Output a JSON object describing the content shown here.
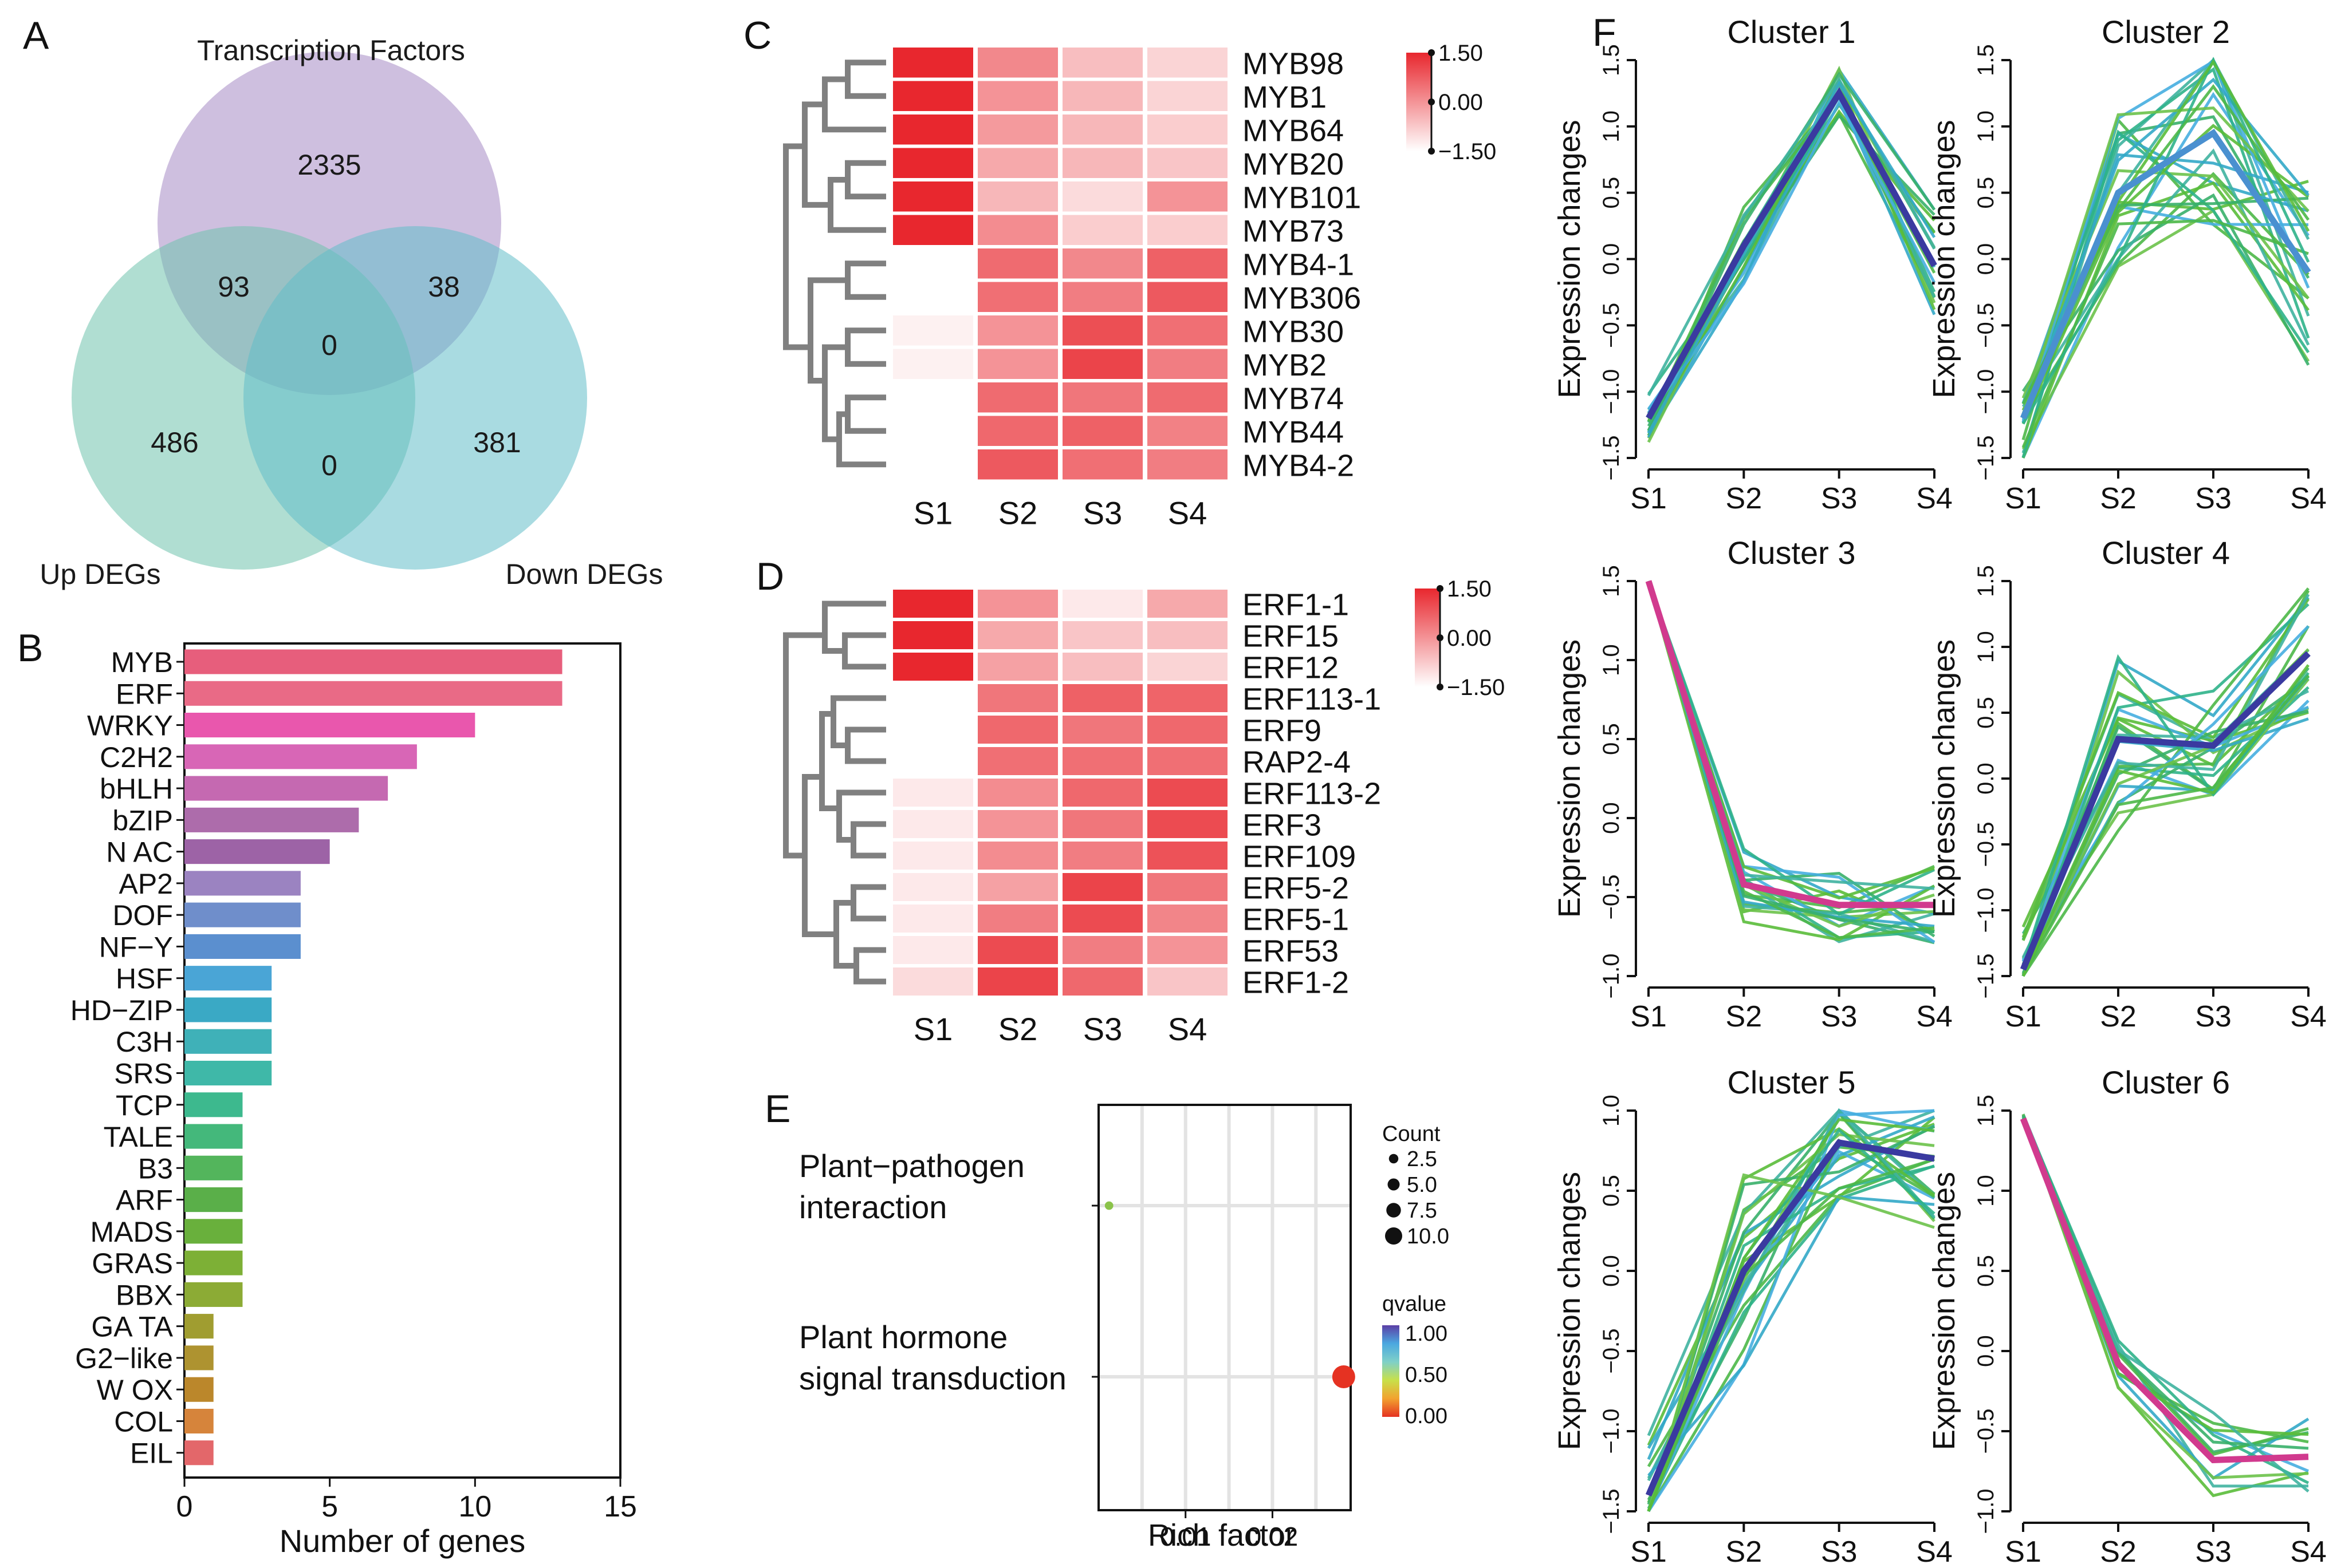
{
  "panel_labels": {
    "A": "A",
    "B": "B",
    "C": "C",
    "D": "D",
    "E": "E",
    "F": "F"
  },
  "colors": {
    "venn_tf": "#a58bc5",
    "venn_up": "#6fc3ad",
    "venn_down": "#63bdc8",
    "heat_low": "#ffffff",
    "heat_high": "#e8272e",
    "tree": "#808080",
    "grid": "#e3e3e3"
  },
  "chart_data": [
    {
      "panel": "A",
      "type": "venn",
      "sets": [
        "Transcription Factors",
        "Up DEGs",
        "Down DEGs"
      ],
      "regions": {
        "tf_only": "2335",
        "up_only": "486",
        "down_only": "381",
        "tf_up": "93",
        "tf_down": "38",
        "up_down": "0",
        "all_three": "0"
      }
    },
    {
      "panel": "B",
      "type": "bar",
      "orientation": "horizontal",
      "xlabel": "Number of genes",
      "xlim": [
        0,
        15
      ],
      "xticks": [
        "0",
        "5",
        "10",
        "15"
      ],
      "categories": [
        "MYB",
        "ERF",
        "WRKY",
        "C2H2",
        "bHLH",
        "bZIP",
        "N   AC",
        "AP2",
        "DOF",
        "NF−Y",
        "HSF",
        "HD−ZIP",
        "C3H",
        "SRS",
        "TCP",
        "TALE",
        "B3",
        "ARF",
        "MADS",
        "GRAS",
        "BBX",
        "GA   TA",
        "G2−like",
        "W   OX",
        "COL",
        "EIL"
      ],
      "values": [
        13,
        13,
        10,
        8,
        7,
        6,
        5,
        4,
        4,
        4,
        3,
        3,
        3,
        3,
        2,
        2,
        2,
        2,
        2,
        2,
        2,
        1,
        1,
        1,
        1,
        1
      ],
      "bar_colors": [
        "#e75e7c",
        "#e96a86",
        "#e957ad",
        "#d866b6",
        "#c569b1",
        "#ad6cab",
        "#9d63a6",
        "#9b83c1",
        "#6f8ecb",
        "#5b8fcf",
        "#4aa5d6",
        "#3aa9c5",
        "#3fb1b8",
        "#3fb8a8",
        "#3db98e",
        "#44b87b",
        "#53b55c",
        "#5aaf49",
        "#69b03c",
        "#7db036",
        "#8cab35",
        "#a09d30",
        "#ae9330",
        "#bb872b",
        "#d6843b",
        "#e3676a"
      ]
    },
    {
      "panel": "C",
      "type": "heatmap",
      "columns": [
        "S1",
        "S2",
        "S3",
        "S4"
      ],
      "rows": [
        "MYB98",
        "MYB1",
        "MYB64",
        "MYB20",
        "MYB101",
        "MYB73",
        "MYB4-1",
        "MYB306",
        "MYB30",
        "MYB2",
        "MYB74",
        "MYB44",
        "MYB4-2"
      ],
      "values": [
        [
          1.5,
          0.15,
          -0.6,
          -0.9
        ],
        [
          1.5,
          0.0,
          -0.5,
          -0.9
        ],
        [
          1.5,
          -0.1,
          -0.5,
          -0.8
        ],
        [
          1.5,
          -0.3,
          -0.5,
          -0.7
        ],
        [
          1.5,
          -0.5,
          -1.0,
          0.0
        ],
        [
          1.5,
          0.1,
          -0.8,
          -0.8
        ],
        [
          -1.5,
          0.55,
          0.15,
          0.7
        ],
        [
          -1.5,
          0.5,
          0.3,
          0.8
        ],
        [
          -1.3,
          0.0,
          0.95,
          0.5
        ],
        [
          -1.3,
          0.0,
          1.1,
          0.3
        ],
        [
          -1.5,
          0.55,
          0.4,
          0.55
        ],
        [
          -1.5,
          0.6,
          0.7,
          0.25
        ],
        [
          -1.5,
          0.8,
          0.5,
          0.3
        ]
      ],
      "legend": {
        "max": "1.50",
        "mid": "0.00",
        "min": "−1.50"
      }
    },
    {
      "panel": "D",
      "type": "heatmap",
      "columns": [
        "S1",
        "S2",
        "S3",
        "S4"
      ],
      "rows": [
        "ERF1-1",
        "ERF15",
        "ERF12",
        "ERF113-1",
        "ERF9",
        "RAP2-4",
        "ERF113-2",
        "ERF3",
        "ERF109",
        "ERF5-2",
        "ERF5-1",
        "ERF53",
        "ERF1-2"
      ],
      "values": [
        [
          1.5,
          0.0,
          -1.2,
          -0.3
        ],
        [
          1.5,
          -0.3,
          -0.7,
          -0.6
        ],
        [
          1.5,
          -0.2,
          -0.6,
          -0.9
        ],
        [
          -1.5,
          0.4,
          0.7,
          0.65
        ],
        [
          -1.5,
          0.6,
          0.4,
          0.6
        ],
        [
          -1.5,
          0.5,
          0.5,
          0.5
        ],
        [
          -1.2,
          0.1,
          0.6,
          1.0
        ],
        [
          -1.2,
          0.0,
          0.4,
          1.0
        ],
        [
          -1.2,
          0.1,
          0.3,
          0.9
        ],
        [
          -1.2,
          -0.2,
          1.1,
          0.4
        ],
        [
          -1.2,
          0.3,
          1.0,
          0.2
        ],
        [
          -1.2,
          1.0,
          0.3,
          0.0
        ],
        [
          -1.0,
          1.1,
          0.6,
          -0.7
        ]
      ],
      "legend": {
        "max": "1.50",
        "mid": "0.00",
        "min": "−1.50"
      }
    },
    {
      "panel": "E",
      "type": "scatter",
      "xlabel": "Rich factor",
      "xticks": [
        {
          "value": 0.01,
          "label": "0.01"
        },
        {
          "value": 0.02,
          "label": "0.02"
        }
      ],
      "xlim": [
        0.0,
        0.029
      ],
      "pathways": [
        {
          "label_lines": [
            "Plant−pathogen",
            "interaction"
          ],
          "rich_factor": 0.0012,
          "count": 1,
          "qvalue": 0.55,
          "color": "#8bc34a"
        },
        {
          "label_lines": [
            "Plant hormone",
            "signal transduction"
          ],
          "rich_factor": 0.0282,
          "count": 10,
          "qvalue": 0.0,
          "color": "#e53222"
        }
      ],
      "size_legend": {
        "title": "Count",
        "items": [
          "2.5",
          "5.0",
          "7.5",
          "10.0"
        ],
        "values": [
          2.5,
          5.0,
          7.5,
          10.0
        ]
      },
      "color_legend": {
        "title": "qvalue",
        "labels": [
          "1.00",
          "0.50",
          "0.00"
        ],
        "colors": [
          "#5b3fa6",
          "#4ba8e0",
          "#7fd0c8",
          "#c8e04a",
          "#f2a22f",
          "#e53222"
        ]
      }
    },
    {
      "panel": "F",
      "type": "line",
      "ylabel": "Expression changes",
      "x": [
        "S1",
        "S2",
        "S3",
        "S4"
      ],
      "clusters": [
        {
          "title": "Cluster 1",
          "ylim": [
            -1.5,
            1.5
          ],
          "yticks": [
            "−1.5",
            "−1.0",
            "−0.5",
            "0.0",
            "0.5",
            "1.0",
            "1.5"
          ],
          "center": [
            -1.2,
            0.1,
            1.25,
            -0.05
          ],
          "spread": [
            0.2,
            0.3,
            0.2,
            0.45
          ],
          "n": 22,
          "center_color": "#3a3aa0"
        },
        {
          "title": "Cluster 2",
          "ylim": [
            -1.5,
            1.5
          ],
          "yticks": [
            "−1.5",
            "−1.0",
            "−0.5",
            "0.0",
            "0.5",
            "1.0",
            "1.5"
          ],
          "center": [
            -1.2,
            0.5,
            0.95,
            -0.1
          ],
          "spread": [
            0.35,
            0.6,
            0.7,
            0.7
          ],
          "n": 26,
          "center_color": "#4a90d0"
        },
        {
          "title": "Cluster 3",
          "ylim": [
            -1.0,
            1.5
          ],
          "yticks": [
            "−1.0",
            "−0.5",
            "0.0",
            "0.5",
            "1.0",
            "1.5"
          ],
          "center": [
            1.5,
            -0.42,
            -0.55,
            -0.55
          ],
          "spread": [
            0.02,
            0.25,
            0.25,
            0.25
          ],
          "n": 20,
          "center_color": "#d13a8e"
        },
        {
          "title": "Cluster 4",
          "ylim": [
            -1.5,
            1.5
          ],
          "yticks": [
            "−1.5",
            "−1.0",
            "−0.5",
            "0.0",
            "0.5",
            "1.0",
            "1.5"
          ],
          "center": [
            -1.45,
            0.3,
            0.25,
            0.95
          ],
          "spread": [
            0.35,
            0.7,
            0.45,
            0.5
          ],
          "n": 26,
          "center_color": "#3a3aa0"
        },
        {
          "title": "Cluster 5",
          "ylim": [
            -1.5,
            1.0
          ],
          "yticks": [
            "−1.5",
            "−1.0",
            "−0.5",
            "0.0",
            "0.5",
            "1.0"
          ],
          "center": [
            -1.4,
            0.0,
            0.8,
            0.7
          ],
          "spread": [
            0.4,
            0.6,
            0.35,
            0.45
          ],
          "n": 26,
          "center_color": "#3a3aa0"
        },
        {
          "title": "Cluster 6",
          "ylim": [
            -1.0,
            1.5
          ],
          "yticks": [
            "−1.0",
            "−0.5",
            "0.0",
            "0.5",
            "1.0",
            "1.5"
          ],
          "center": [
            1.45,
            -0.08,
            -0.68,
            -0.66
          ],
          "spread": [
            0.03,
            0.15,
            0.3,
            0.28
          ],
          "n": 12,
          "center_color": "#d13a8e"
        }
      ]
    }
  ]
}
